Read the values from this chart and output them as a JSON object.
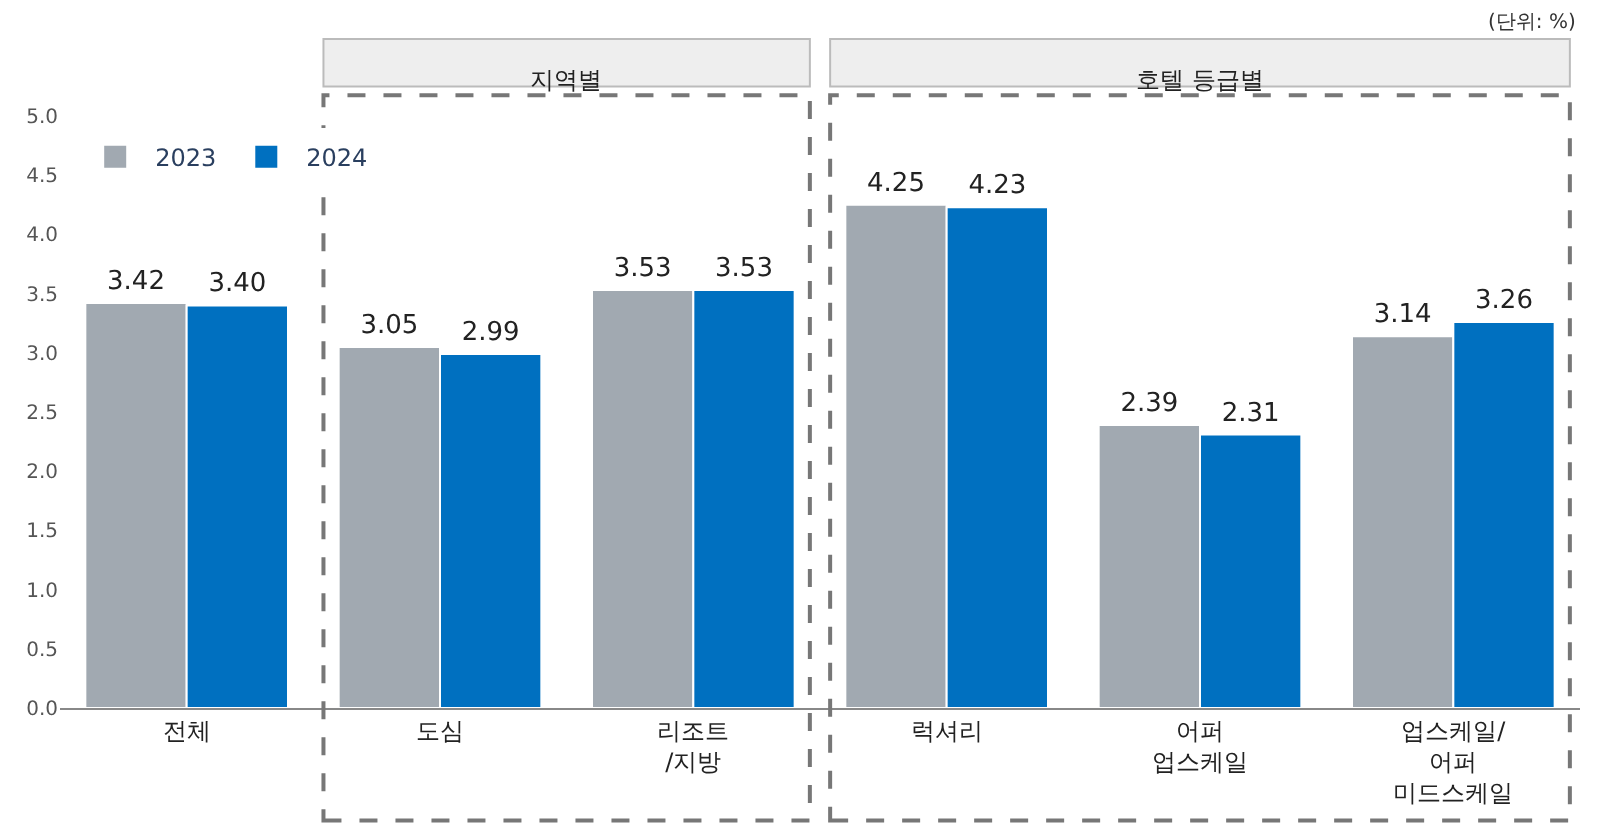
{
  "chart_data": {
    "type": "bar",
    "categories": [
      "전체",
      "도심",
      "리조트\n/지방",
      "럭셔리",
      "어퍼\n업스케일",
      "업스케일/\n어퍼\n미드스케일"
    ],
    "series": [
      {
        "name": "2023",
        "color": "#a1a9b1",
        "values": [
          3.42,
          3.05,
          3.53,
          4.25,
          2.39,
          3.14
        ],
        "value_labels": [
          "3.42",
          "3.05",
          "3.53",
          "4.25",
          "2.39",
          "3.14"
        ]
      },
      {
        "name": "2024",
        "color": "#0070c0",
        "values": [
          3.4,
          2.99,
          3.53,
          4.23,
          2.31,
          3.26
        ],
        "value_labels": [
          "3.40",
          "2.99",
          "3.53",
          "4.23",
          "2.31",
          "3.26"
        ]
      }
    ],
    "ylim": [
      0,
      5
    ],
    "yticks": [
      {
        "value": 0,
        "label": "0.0"
      },
      {
        "value": 0.5,
        "label": "0.5"
      },
      {
        "value": 1,
        "label": "1.0"
      },
      {
        "value": 1.5,
        "label": "1.5"
      },
      {
        "value": 2,
        "label": "2.0"
      },
      {
        "value": 2.5,
        "label": "2.5"
      },
      {
        "value": 3,
        "label": "3.0"
      },
      {
        "value": 3.5,
        "label": "3.5"
      },
      {
        "value": 4,
        "label": "4.0"
      },
      {
        "value": 4.5,
        "label": "4.5"
      },
      {
        "value": 5,
        "label": "5.0"
      }
    ],
    "legend": "top left",
    "annotations": [
      "(단위: %)",
      "지역별",
      "호텔 등급별"
    ]
  }
}
